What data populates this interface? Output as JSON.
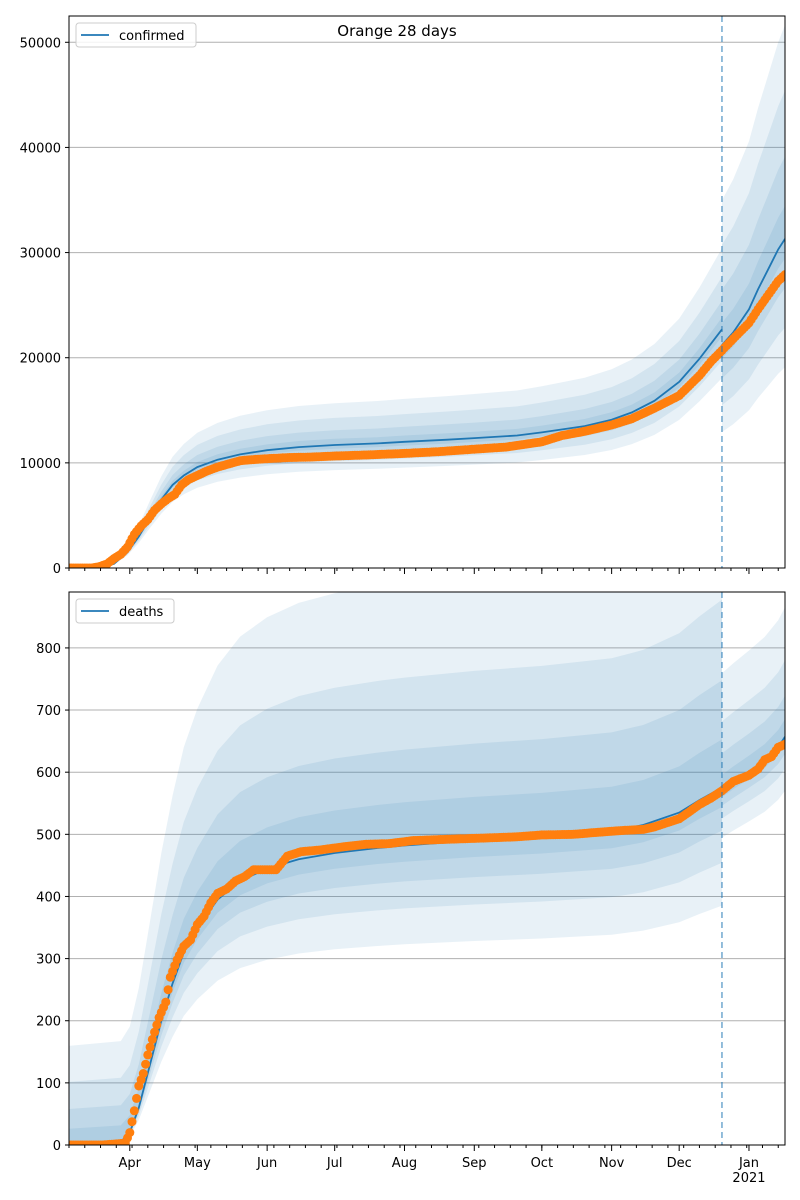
{
  "title": "Orange 28 days",
  "chart_data": [
    {
      "type": "line",
      "series_name": "confirmed",
      "x_tick_labels": [
        "Apr",
        "May",
        "Jun",
        "Jul",
        "Aug",
        "Sep",
        "Oct",
        "Nov",
        "Dec",
        "Jan\n2021"
      ],
      "x_ticks": [
        "2020-04-01",
        "2020-05-01",
        "2020-06-01",
        "2020-07-01",
        "2020-08-01",
        "2020-09-01",
        "2020-10-01",
        "2020-11-01",
        "2020-12-01",
        "2021-01-01"
      ],
      "xlim": [
        "2020-03-05",
        "2021-01-17"
      ],
      "ylim": [
        0,
        52500
      ],
      "y_ticks": [
        0,
        10000,
        20000,
        30000,
        40000,
        50000
      ],
      "forecast_start": "2020-12-20",
      "model_line": [
        [
          "2020-03-05",
          0
        ],
        [
          "2020-03-20",
          100
        ],
        [
          "2020-03-25",
          400
        ],
        [
          "2020-03-31",
          1500
        ],
        [
          "2020-04-05",
          3000
        ],
        [
          "2020-04-10",
          4800
        ],
        [
          "2020-04-15",
          6500
        ],
        [
          "2020-04-20",
          7900
        ],
        [
          "2020-04-25",
          8800
        ],
        [
          "2020-05-01",
          9600
        ],
        [
          "2020-05-10",
          10300
        ],
        [
          "2020-05-20",
          10800
        ],
        [
          "2020-06-01",
          11200
        ],
        [
          "2020-06-15",
          11500
        ],
        [
          "2020-07-01",
          11700
        ],
        [
          "2020-07-20",
          11850
        ],
        [
          "2020-08-01",
          12000
        ],
        [
          "2020-08-20",
          12200
        ],
        [
          "2020-09-01",
          12350
        ],
        [
          "2020-09-20",
          12600
        ],
        [
          "2020-10-01",
          12900
        ],
        [
          "2020-10-20",
          13500
        ],
        [
          "2020-11-01",
          14100
        ],
        [
          "2020-11-10",
          14800
        ],
        [
          "2020-11-20",
          15900
        ],
        [
          "2020-12-01",
          17700
        ],
        [
          "2020-12-10",
          19900
        ],
        [
          "2020-12-20",
          22700
        ]
      ],
      "forecast_line": [
        [
          "2020-12-20",
          21200
        ],
        [
          "2020-12-25",
          22400
        ],
        [
          "2021-01-01",
          24600
        ],
        [
          "2021-01-05",
          26500
        ],
        [
          "2021-01-10",
          28600
        ],
        [
          "2021-01-14",
          30300
        ],
        [
          "2021-01-17",
          31300
        ]
      ],
      "observed": [
        [
          "2020-03-05",
          0
        ],
        [
          "2020-03-10",
          0
        ],
        [
          "2020-03-15",
          0
        ],
        [
          "2020-03-18",
          100
        ],
        [
          "2020-03-22",
          400
        ],
        [
          "2020-03-25",
          900
        ],
        [
          "2020-03-28",
          1300
        ],
        [
          "2020-03-31",
          2000
        ],
        [
          "2020-04-03",
          3200
        ],
        [
          "2020-04-06",
          4000
        ],
        [
          "2020-04-09",
          4600
        ],
        [
          "2020-04-12",
          5500
        ],
        [
          "2020-04-15",
          6100
        ],
        [
          "2020-04-18",
          6600
        ],
        [
          "2020-04-21",
          7000
        ],
        [
          "2020-04-24",
          7900
        ],
        [
          "2020-04-27",
          8400
        ],
        [
          "2020-05-01",
          8800
        ],
        [
          "2020-05-05",
          9200
        ],
        [
          "2020-05-10",
          9600
        ],
        [
          "2020-05-15",
          9900
        ],
        [
          "2020-05-20",
          10200
        ],
        [
          "2020-05-25",
          10300
        ],
        [
          "2020-06-01",
          10400
        ],
        [
          "2020-06-10",
          10500
        ],
        [
          "2020-06-20",
          10550
        ],
        [
          "2020-07-01",
          10650
        ],
        [
          "2020-07-15",
          10750
        ],
        [
          "2020-08-01",
          10900
        ],
        [
          "2020-08-15",
          11050
        ],
        [
          "2020-09-01",
          11300
        ],
        [
          "2020-09-15",
          11500
        ],
        [
          "2020-10-01",
          12000
        ],
        [
          "2020-10-10",
          12600
        ],
        [
          "2020-10-20",
          13000
        ],
        [
          "2020-11-01",
          13600
        ],
        [
          "2020-11-10",
          14200
        ],
        [
          "2020-11-20",
          15200
        ],
        [
          "2020-12-01",
          16400
        ],
        [
          "2020-12-10",
          18300
        ],
        [
          "2020-12-15",
          19600
        ],
        [
          "2020-12-20",
          20700
        ],
        [
          "2020-12-25",
          21800
        ],
        [
          "2021-01-01",
          23300
        ],
        [
          "2021-01-05",
          24600
        ],
        [
          "2021-01-10",
          26100
        ],
        [
          "2021-01-14",
          27300
        ],
        [
          "2021-01-17",
          27900
        ]
      ]
    },
    {
      "type": "line",
      "series_name": "deaths",
      "x_tick_labels": [
        "Apr",
        "May",
        "Jun",
        "Jul",
        "Aug",
        "Sep",
        "Oct",
        "Nov",
        "Dec",
        "Jan\n2021"
      ],
      "x_ticks": [
        "2020-04-01",
        "2020-05-01",
        "2020-06-01",
        "2020-07-01",
        "2020-08-01",
        "2020-09-01",
        "2020-10-01",
        "2020-11-01",
        "2020-12-01",
        "2021-01-01"
      ],
      "xlim": [
        "2020-03-05",
        "2021-01-17"
      ],
      "ylim": [
        0,
        890
      ],
      "y_ticks": [
        0,
        100,
        200,
        300,
        400,
        500,
        600,
        700,
        800
      ],
      "forecast_start": "2020-12-20",
      "model_line": [
        [
          "2020-03-05",
          0
        ],
        [
          "2020-03-28",
          5
        ],
        [
          "2020-04-01",
          20
        ],
        [
          "2020-04-05",
          60
        ],
        [
          "2020-04-10",
          130
        ],
        [
          "2020-04-15",
          200
        ],
        [
          "2020-04-20",
          260
        ],
        [
          "2020-04-25",
          310
        ],
        [
          "2020-05-01",
          350
        ],
        [
          "2020-05-10",
          395
        ],
        [
          "2020-05-20",
          425
        ],
        [
          "2020-06-01",
          445
        ],
        [
          "2020-06-15",
          460
        ],
        [
          "2020-07-01",
          470
        ],
        [
          "2020-07-20",
          478
        ],
        [
          "2020-08-01",
          482
        ],
        [
          "2020-09-01",
          490
        ],
        [
          "2020-10-01",
          496
        ],
        [
          "2020-11-01",
          505
        ],
        [
          "2020-11-15",
          515
        ],
        [
          "2020-12-01",
          535
        ],
        [
          "2020-12-10",
          555
        ],
        [
          "2020-12-20",
          575
        ]
      ],
      "forecast_line": [
        [
          "2020-12-20",
          570
        ],
        [
          "2020-12-25",
          583
        ],
        [
          "2021-01-01",
          600
        ],
        [
          "2021-01-08",
          618
        ],
        [
          "2021-01-14",
          640
        ],
        [
          "2021-01-17",
          657
        ]
      ],
      "observed": [
        [
          "2020-03-05",
          0
        ],
        [
          "2020-03-20",
          0
        ],
        [
          "2020-03-30",
          3
        ],
        [
          "2020-04-01",
          20
        ],
        [
          "2020-04-03",
          55
        ],
        [
          "2020-04-05",
          95
        ],
        [
          "2020-04-07",
          115
        ],
        [
          "2020-04-09",
          145
        ],
        [
          "2020-04-11",
          170
        ],
        [
          "2020-04-14",
          205
        ],
        [
          "2020-04-17",
          230
        ],
        [
          "2020-04-19",
          270
        ],
        [
          "2020-04-22",
          298
        ],
        [
          "2020-04-25",
          320
        ],
        [
          "2020-04-28",
          330
        ],
        [
          "2020-05-01",
          355
        ],
        [
          "2020-05-04",
          368
        ],
        [
          "2020-05-07",
          390
        ],
        [
          "2020-05-10",
          405
        ],
        [
          "2020-05-14",
          412
        ],
        [
          "2020-05-18",
          425
        ],
        [
          "2020-05-22",
          432
        ],
        [
          "2020-05-26",
          443
        ],
        [
          "2020-06-05",
          443
        ],
        [
          "2020-06-10",
          465
        ],
        [
          "2020-06-16",
          472
        ],
        [
          "2020-06-25",
          475
        ],
        [
          "2020-07-05",
          480
        ],
        [
          "2020-07-15",
          484
        ],
        [
          "2020-07-25",
          485
        ],
        [
          "2020-08-05",
          490
        ],
        [
          "2020-08-20",
          492
        ],
        [
          "2020-09-05",
          494
        ],
        [
          "2020-09-20",
          496
        ],
        [
          "2020-10-01",
          499
        ],
        [
          "2020-10-15",
          500
        ],
        [
          "2020-10-25",
          503
        ],
        [
          "2020-11-05",
          506
        ],
        [
          "2020-11-15",
          508
        ],
        [
          "2020-11-20",
          512
        ],
        [
          "2020-11-25",
          518
        ],
        [
          "2020-12-01",
          525
        ],
        [
          "2020-12-05",
          535
        ],
        [
          "2020-12-10",
          548
        ],
        [
          "2020-12-15",
          558
        ],
        [
          "2020-12-20",
          570
        ],
        [
          "2020-12-25",
          585
        ],
        [
          "2021-01-01",
          595
        ],
        [
          "2021-01-05",
          605
        ],
        [
          "2021-01-08",
          620
        ],
        [
          "2021-01-11",
          625
        ],
        [
          "2021-01-14",
          640
        ],
        [
          "2021-01-17",
          645
        ]
      ]
    }
  ],
  "colors": {
    "line": "#1f77b4",
    "observed": "#ff7f0e",
    "band": "#1f77b4",
    "grid": "#b0b0b0"
  }
}
